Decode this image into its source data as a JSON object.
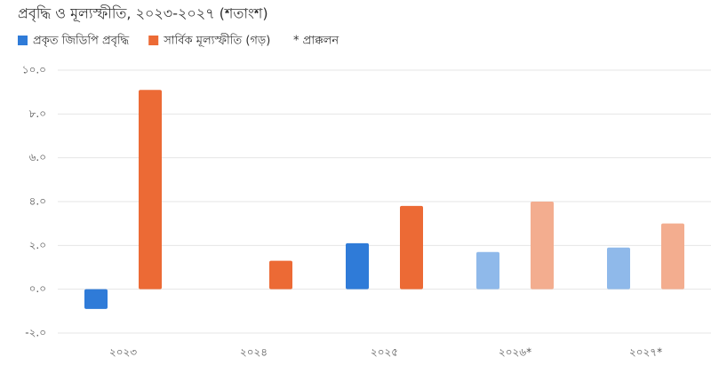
{
  "chart_data": {
    "type": "bar",
    "title": "প্রবৃদ্ধি ও মূল্যস্ফীতি, ২০২৩-২০২৭ (শতাংশ)",
    "note": "* প্রাক্কলন",
    "categories": [
      "২০২৩",
      "২০২৪",
      "২০২৫",
      "২০২৬*",
      "২০২৭*"
    ],
    "series": [
      {
        "name": "প্রকৃত জিডিপি প্রবৃদ্ধি",
        "color": "#2f7bd8",
        "colors": [
          "#2f7bd8",
          "#2f7bd8",
          "#2f7bd8",
          "#8fb9ea",
          "#8fb9ea"
        ],
        "values": [
          -0.9,
          null,
          2.1,
          1.7,
          1.9
        ]
      },
      {
        "name": "সার্বিক মূল্যস্ফীতি (গড়)",
        "color": "#ec6a35",
        "colors": [
          "#ec6a35",
          "#ec6a35",
          "#ec6a35",
          "#f3ad8f",
          "#f3ad8f"
        ],
        "values": [
          9.1,
          1.3,
          3.8,
          4.0,
          3.0
        ]
      }
    ],
    "ylim": [
      -2,
      10
    ],
    "yticks": [
      {
        "value": -2,
        "label": "-২.০"
      },
      {
        "value": 0,
        "label": "০.০"
      },
      {
        "value": 2,
        "label": "২.০"
      },
      {
        "value": 4,
        "label": "৪.০"
      },
      {
        "value": 6,
        "label": "৬.০"
      },
      {
        "value": 8,
        "label": "৮.০"
      },
      {
        "value": 10,
        "label": "১০.০"
      }
    ],
    "grid": true
  }
}
